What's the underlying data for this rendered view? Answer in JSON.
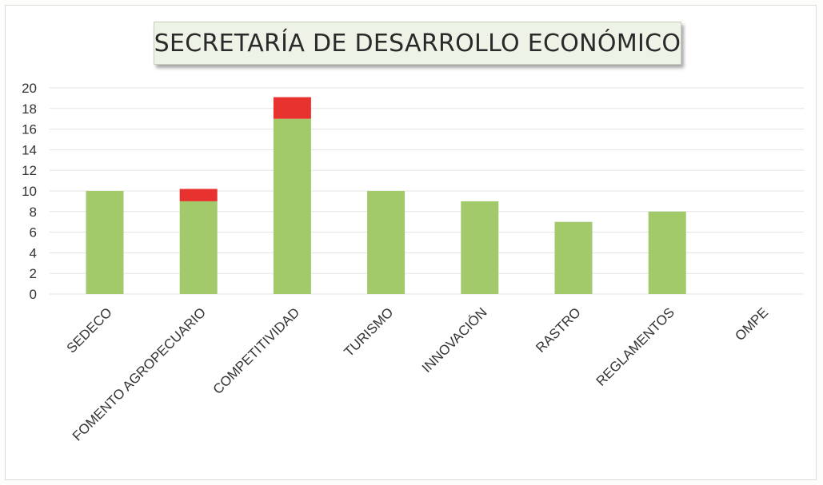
{
  "chart_data": {
    "type": "bar",
    "stacked": true,
    "title": "SECRETARÍA DE DESARROLLO ECONÓMICO",
    "categories": [
      "SEDECO",
      "FOMENTO AGROPECUARIO",
      "COMPETITIVIDAD",
      "TURISMO",
      "INNOVACIÓN",
      "RASTRO",
      "REGLAMENTOS",
      "OMPE"
    ],
    "series": [
      {
        "color": "#a2c96a",
        "values": [
          10,
          9,
          17,
          10,
          9,
          7,
          8,
          0
        ]
      },
      {
        "color": "#e8322f",
        "values": [
          0,
          1.2,
          2.1,
          0,
          0,
          0,
          0,
          0
        ]
      }
    ],
    "yticks": [
      0,
      2,
      4,
      6,
      8,
      10,
      12,
      14,
      16,
      18,
      20
    ],
    "ylim": [
      0,
      20
    ],
    "grid": true,
    "legend": "none",
    "gridline_color": "#e3e3e3"
  }
}
